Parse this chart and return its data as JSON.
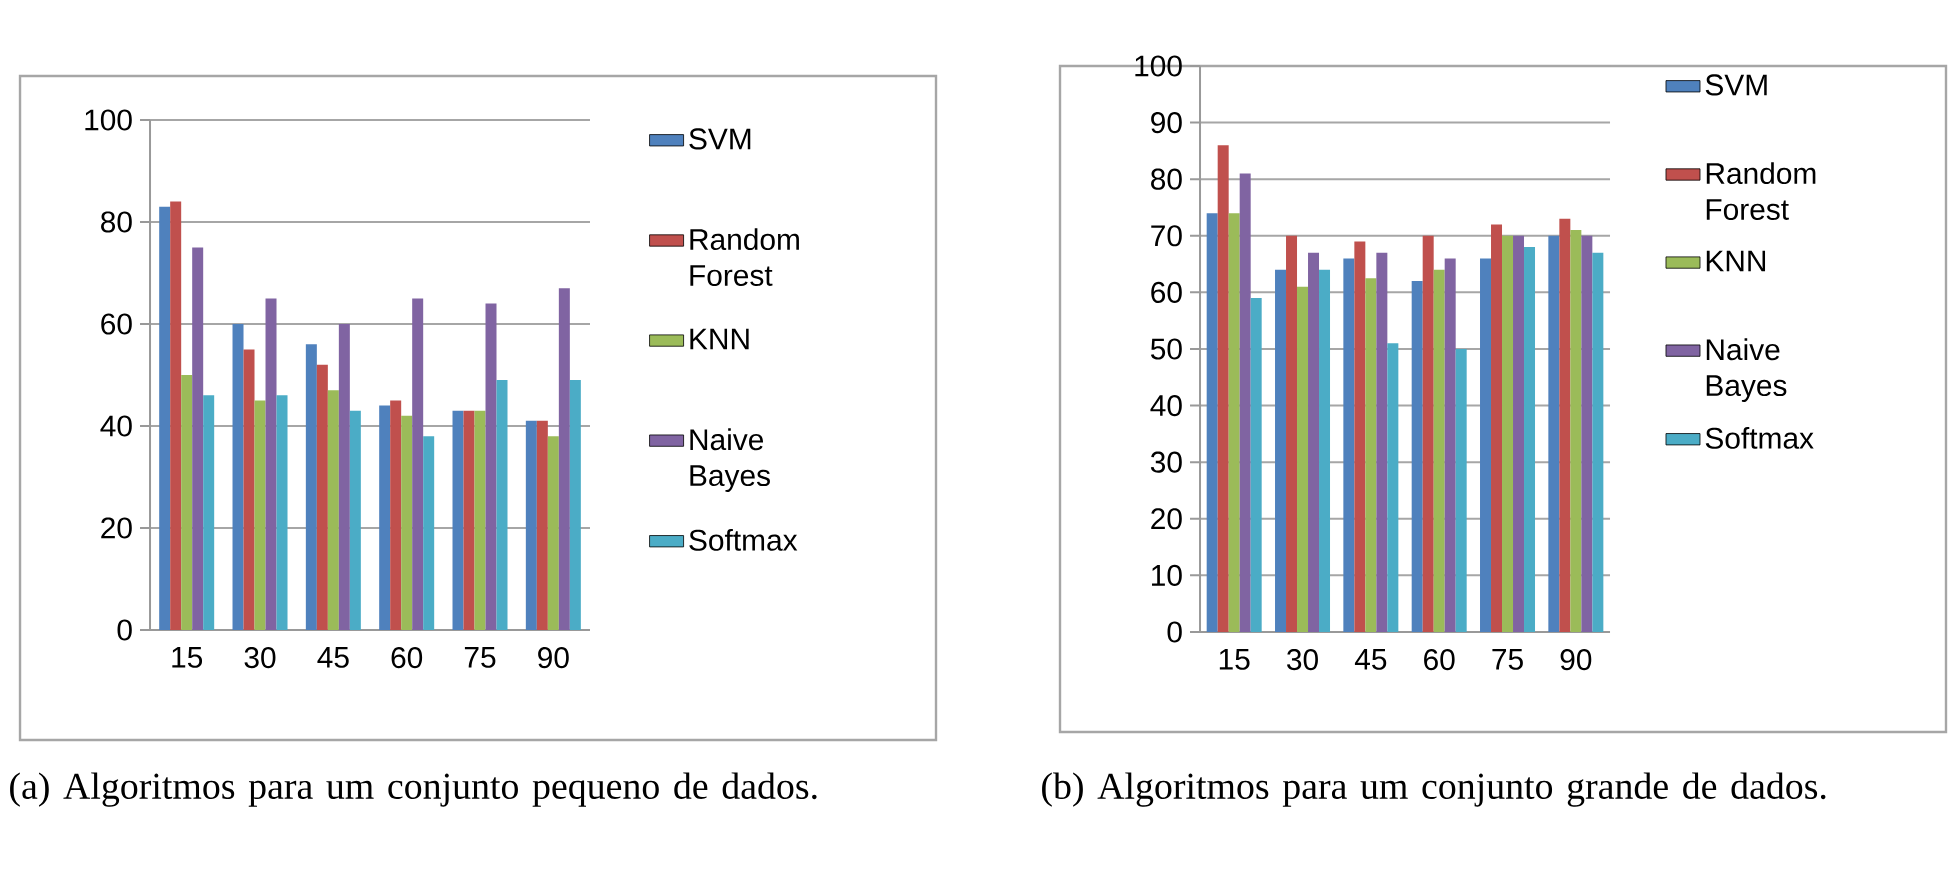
{
  "chart_data": [
    {
      "type": "bar",
      "categories": [
        "15",
        "30",
        "45",
        "60",
        "75",
        "90"
      ],
      "series": [
        {
          "name": "SVM",
          "color": "#4f81bd",
          "values": [
            83,
            60,
            56,
            44,
            43,
            41
          ]
        },
        {
          "name": "Random Forest",
          "color": "#c0504d",
          "values": [
            84,
            55,
            52,
            45,
            43,
            41
          ]
        },
        {
          "name": "KNN",
          "color": "#9bbb59",
          "values": [
            50,
            45,
            47,
            42,
            43,
            38
          ]
        },
        {
          "name": "Naive Bayes",
          "color": "#8064a2",
          "values": [
            75,
            65,
            60,
            65,
            64,
            67
          ]
        },
        {
          "name": "Softmax",
          "color": "#4bacc6",
          "values": [
            46,
            46,
            43,
            38,
            49,
            49
          ]
        }
      ],
      "ylim": [
        0,
        100
      ],
      "yticks": [
        0,
        20,
        40,
        60,
        80,
        100
      ],
      "grid": "y",
      "legend": "right",
      "annotations": [
        "(a) Algoritmos para um conjunto pequeno de dados."
      ]
    },
    {
      "type": "bar",
      "categories": [
        "15",
        "30",
        "45",
        "60",
        "75",
        "90"
      ],
      "series": [
        {
          "name": "SVM",
          "color": "#4f81bd",
          "values": [
            74,
            64,
            66,
            62,
            66,
            70
          ]
        },
        {
          "name": "Random Forest",
          "color": "#c0504d",
          "values": [
            86,
            70,
            69,
            70,
            72,
            73
          ]
        },
        {
          "name": "KNN",
          "color": "#9bbb59",
          "values": [
            74,
            61,
            62.5,
            64,
            70,
            71
          ]
        },
        {
          "name": "Naive Bayes",
          "color": "#8064a2",
          "values": [
            81,
            67,
            67,
            66,
            70,
            70
          ]
        },
        {
          "name": "Softmax",
          "color": "#4bacc6",
          "values": [
            59,
            64,
            51,
            50,
            68,
            67
          ]
        }
      ],
      "ylim": [
        0,
        100
      ],
      "yticks": [
        0,
        10,
        20,
        30,
        40,
        50,
        60,
        70,
        80,
        90,
        100
      ],
      "grid": "y",
      "legend": "right",
      "annotations": [
        "(b) Algoritmos para um conjunto grande de dados."
      ]
    }
  ]
}
